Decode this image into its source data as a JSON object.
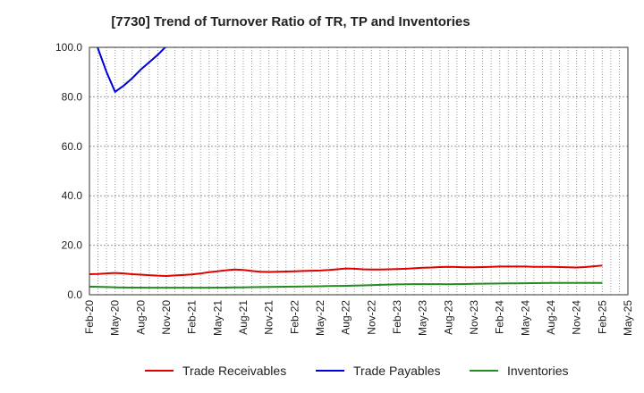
{
  "chart_data": {
    "type": "line",
    "title": "[7730]  Trend of Turnover Ratio of TR, TP and Inventories",
    "xlabel": "",
    "ylabel": "",
    "x_tick_labels": [
      "Feb-20",
      "May-20",
      "Aug-20",
      "Nov-20",
      "Feb-21",
      "May-21",
      "Aug-21",
      "Nov-21",
      "Feb-22",
      "May-22",
      "Aug-22",
      "Nov-22",
      "Feb-23",
      "May-23",
      "Aug-23",
      "Nov-23",
      "Feb-24",
      "May-24",
      "Aug-24",
      "Nov-24",
      "Feb-25",
      "May-25"
    ],
    "y_tick_labels": [
      "0.0",
      "20.0",
      "40.0",
      "60.0",
      "80.0",
      "100.0"
    ],
    "ylim": [
      0,
      100
    ],
    "grid": true,
    "legend_position": "bottom",
    "x": [
      "Feb-20",
      "Mar-20",
      "Apr-20",
      "May-20",
      "Jun-20",
      "Jul-20",
      "Aug-20",
      "Sep-20",
      "Oct-20",
      "Nov-20",
      "Dec-20",
      "Jan-21",
      "Feb-21",
      "Mar-21",
      "Apr-21",
      "May-21",
      "Jun-21",
      "Jul-21",
      "Aug-21",
      "Sep-21",
      "Oct-21",
      "Nov-21",
      "Dec-21",
      "Jan-22",
      "Feb-22",
      "Mar-22",
      "Apr-22",
      "May-22",
      "Jun-22",
      "Jul-22",
      "Aug-22",
      "Sep-22",
      "Oct-22",
      "Nov-22",
      "Dec-22",
      "Jan-23",
      "Feb-23",
      "Mar-23",
      "Apr-23",
      "May-23",
      "Jun-23",
      "Jul-23",
      "Aug-23",
      "Sep-23",
      "Oct-23",
      "Nov-23",
      "Dec-23",
      "Jan-24",
      "Feb-24",
      "Mar-24",
      "Apr-24",
      "May-24",
      "Jun-24",
      "Jul-24",
      "Aug-24",
      "Sep-24",
      "Oct-24",
      "Nov-24",
      "Dec-24",
      "Jan-25",
      "Feb-25"
    ],
    "series": [
      {
        "name": "Trade Receivables",
        "color": "#e00000",
        "values": [
          8.3,
          8.4,
          8.6,
          8.8,
          8.6,
          8.3,
          8.1,
          7.9,
          7.7,
          7.6,
          7.8,
          8.0,
          8.2,
          8.6,
          9.1,
          9.5,
          9.9,
          10.2,
          10.0,
          9.6,
          9.3,
          9.2,
          9.3,
          9.4,
          9.5,
          9.6,
          9.7,
          9.8,
          10.0,
          10.3,
          10.6,
          10.5,
          10.3,
          10.2,
          10.2,
          10.3,
          10.4,
          10.5,
          10.7,
          10.9,
          11.0,
          11.2,
          11.3,
          11.2,
          11.1,
          11.1,
          11.2,
          11.3,
          11.4,
          11.4,
          11.4,
          11.4,
          11.3,
          11.3,
          11.3,
          11.2,
          11.1,
          11.0,
          11.2,
          11.5,
          11.8
        ]
      },
      {
        "name": "Trade Payables",
        "color": "#0000dd",
        "values": [
          112.0,
          99.5,
          90.0,
          82.0,
          84.5,
          87.5,
          91.0,
          94.0,
          97.0,
          100.5,
          null,
          null,
          null,
          null,
          null,
          null,
          null,
          null,
          null,
          null,
          null,
          null,
          null,
          null,
          null,
          null,
          null,
          null,
          null,
          null,
          null,
          null,
          null,
          null,
          null,
          null,
          null,
          null,
          null,
          null,
          null,
          null,
          null,
          null,
          null,
          null,
          null,
          null,
          null,
          null,
          null,
          null,
          null,
          null,
          null,
          null,
          null,
          null,
          null,
          null,
          null
        ]
      },
      {
        "name": "Inventories",
        "color": "#228b22",
        "values": [
          3.3,
          3.2,
          3.1,
          3.0,
          2.95,
          2.9,
          2.9,
          2.85,
          2.85,
          2.85,
          2.85,
          2.85,
          2.85,
          2.85,
          2.85,
          2.9,
          2.9,
          3.0,
          3.0,
          3.05,
          3.1,
          3.15,
          3.2,
          3.25,
          3.3,
          3.35,
          3.4,
          3.45,
          3.5,
          3.55,
          3.6,
          3.7,
          3.8,
          3.9,
          4.0,
          4.1,
          4.2,
          4.25,
          4.3,
          4.3,
          4.3,
          4.3,
          4.25,
          4.3,
          4.35,
          4.4,
          4.45,
          4.5,
          4.55,
          4.6,
          4.6,
          4.65,
          4.7,
          4.75,
          4.8,
          4.8,
          4.8,
          4.8,
          4.8,
          4.8,
          4.8
        ]
      }
    ]
  }
}
